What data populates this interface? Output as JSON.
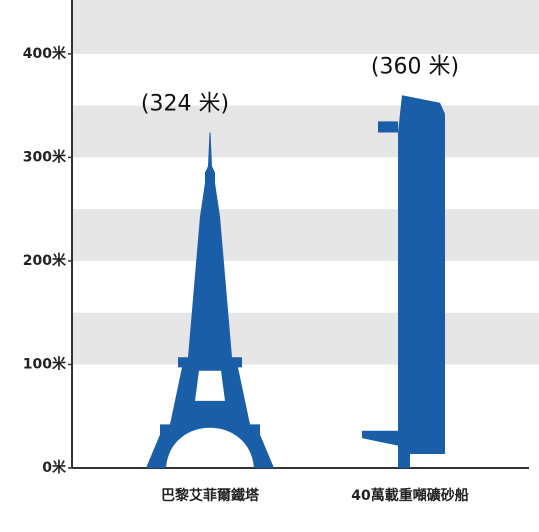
{
  "chart_data": {
    "type": "bar",
    "categories": [
      "巴黎艾菲爾鐵塔",
      "40萬載重噸礦砂船"
    ],
    "values": [
      324,
      360
    ],
    "value_labels": [
      "(324 米)",
      "(360 米)"
    ],
    "color": "#1b5ea8",
    "ylim": [
      0,
      452
    ],
    "yticks": [
      {
        "value": 0,
        "label": "0米"
      },
      {
        "value": 100,
        "label": "100米"
      },
      {
        "value": 200,
        "label": "200米"
      },
      {
        "value": 300,
        "label": "300米"
      },
      {
        "value": 400,
        "label": "400米"
      }
    ]
  }
}
